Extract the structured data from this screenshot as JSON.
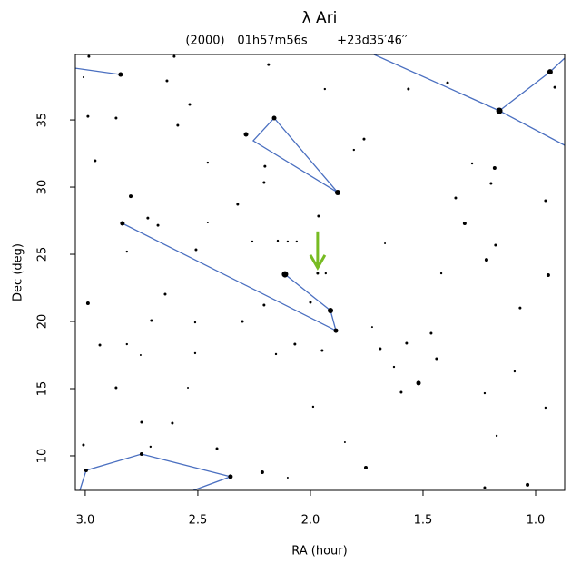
{
  "chart_data": {
    "type": "scatter",
    "title": "λ Ari",
    "epoch": "(2000)",
    "ra_text": "01h57m56s",
    "dec_text": "+23d35′46′′",
    "x_label": "RA (hour)",
    "y_label": "Dec (deg)",
    "xlim": [
      3.044,
      0.871
    ],
    "ylim": [
      7.43,
      39.87
    ],
    "xticks": [
      {
        "value": 3,
        "label": "3.0"
      },
      2.5,
      {
        "value": 2,
        "label": "2.0"
      },
      1.5,
      {
        "value": 1,
        "label": "1.0"
      }
    ],
    "yticks": [
      10,
      15,
      20,
      25,
      30,
      35
    ],
    "color": "#000000",
    "line_color": "#4a6fc0",
    "target_color": "#77bb22",
    "target": [
      1.968,
      24.0
    ],
    "x": [
      2.843,
      2.984,
      3.008,
      2.988,
      2.863,
      2.956,
      2.798,
      2.835,
      2.722,
      2.677,
      2.815,
      2.988,
      2.935,
      2.863,
      2.815,
      2.754,
      2.706,
      2.75,
      2.645,
      2.613,
      2.544,
      2.512,
      2.512,
      2.508,
      2.456,
      2.456,
      2.536,
      2.589,
      2.637,
      2.605,
      2.286,
      2.323,
      2.302,
      2.206,
      2.202,
      2.206,
      2.186,
      2.145,
      2.101,
      2.061,
      2.258,
      2.153,
      2.069,
      1.988,
      1.964,
      2.0,
      1.948,
      1.936,
      1.807,
      1.762,
      1.669,
      1.69,
      1.726,
      1.629,
      1.597,
      1.52,
      1.565,
      1.573,
      1.464,
      1.44,
      1.419,
      1.391,
      1.355,
      1.282,
      1.315,
      1.226,
      1.218,
      1.198,
      1.178,
      1.182,
      1.093,
      1.069,
      0.944,
      0.956,
      0.956,
      1.036,
      0.915,
      3.008,
      2.71,
      2.415,
      2.214,
      2.101,
      1.754,
      1.226,
      1.173,
      1.847,
      2.161,
      1.879,
      1.887,
      1.911,
      2.113,
      1.161,
      0.936,
      2.75,
      2.996,
      2.355,
      1.968,
      1.932
    ],
    "values": [
      38.38,
      39.73,
      38.18,
      35.27,
      35.14,
      31.96,
      29.32,
      27.3,
      27.7,
      27.16,
      25.2,
      21.35,
      18.24,
      15.07,
      18.31,
      17.5,
      20.07,
      12.5,
      22.03,
      12.43,
      15.07,
      17.64,
      19.93,
      25.34,
      27.37,
      31.82,
      36.15,
      34.6,
      37.91,
      39.73,
      33.92,
      28.72,
      20.0,
      21.22,
      31.55,
      30.34,
      39.12,
      26.01,
      25.95,
      25.95,
      25.95,
      17.57,
      18.31,
      13.65,
      27.84,
      21.42,
      17.84,
      37.3,
      32.77,
      33.58,
      25.81,
      17.97,
      19.59,
      16.62,
      14.73,
      15.41,
      37.3,
      18.38,
      19.12,
      17.23,
      23.58,
      37.77,
      29.19,
      31.76,
      27.3,
      14.66,
      24.59,
      30.27,
      25.68,
      31.42,
      16.28,
      21.01,
      23.45,
      28.99,
      13.58,
      7.84,
      37.43,
      10.81,
      10.68,
      10.54,
      8.78,
      8.38,
      9.12,
      7.63,
      11.49,
      11.01,
      35.14,
      29.6,
      19.32,
      20.81,
      23.51,
      35.68,
      38.58,
      10.13,
      8.92,
      8.45,
      23.58,
      23.58
    ],
    "sizes": [
      2.5,
      1.5,
      1,
      1.5,
      1.5,
      1.5,
      2,
      2.5,
      1.5,
      1.5,
      1.2,
      2,
      1.5,
      1.5,
      1.2,
      1,
      1.5,
      1.5,
      1.5,
      1.5,
      1,
      1.2,
      1.2,
      1.5,
      1,
      1.2,
      1.5,
      1.5,
      1.5,
      1.5,
      2.5,
      1.5,
      1.5,
      1.5,
      1.5,
      1.5,
      1.5,
      1.2,
      1.2,
      1.2,
      1.2,
      1.2,
      1.5,
      1.2,
      1.5,
      1.5,
      1.5,
      1.2,
      1.2,
      1.5,
      1,
      1.5,
      1,
      1.2,
      1.5,
      2.5,
      1.5,
      1.5,
      1.5,
      1.5,
      1.2,
      1.5,
      1.5,
      1.2,
      2,
      1.2,
      2,
      1.5,
      1.5,
      2,
      1.2,
      1.5,
      2,
      1.5,
      1.2,
      2,
      1.5,
      1.5,
      1.2,
      1.5,
      2,
      1,
      2,
      1.5,
      1.2,
      1,
      2.5,
      3,
      2.5,
      3,
      3.5,
      3.5,
      3,
      2,
      2,
      2.5,
      1.5,
      1.2
    ],
    "lines": [
      {
        "x": [
          3.044,
          2.843
        ],
        "y": [
          38.85,
          38.38
        ]
      },
      {
        "x": [
          1.718,
          1.161,
          0.871
        ],
        "y": [
          39.87,
          35.68,
          33.11
        ]
      },
      {
        "x": [
          1.161,
          0.936,
          0.871
        ],
        "y": [
          35.68,
          38.58,
          39.6
        ]
      },
      {
        "x": [
          2.161,
          1.879,
          2.254,
          2.161
        ],
        "y": [
          35.14,
          29.6,
          33.45,
          35.14
        ]
      },
      {
        "x": [
          2.835,
          1.887,
          1.911,
          2.113
        ],
        "y": [
          27.3,
          19.32,
          20.81,
          23.51
        ]
      },
      {
        "x": [
          3.024,
          2.996,
          2.75,
          2.355,
          2.52
        ],
        "y": [
          7.43,
          8.92,
          10.13,
          8.45,
          7.43
        ]
      }
    ]
  }
}
